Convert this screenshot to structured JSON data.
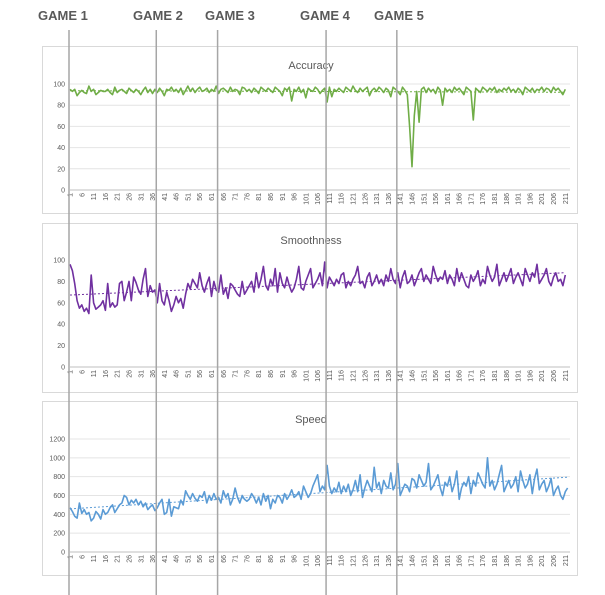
{
  "games": [
    {
      "label": "GAME 1",
      "x": 1
    },
    {
      "label": "GAME 2",
      "x": 38
    },
    {
      "label": "GAME 3",
      "x": 64
    },
    {
      "label": "GAME 4",
      "x": 110
    },
    {
      "label": "GAME 5",
      "x": 140
    }
  ],
  "chart_data": [
    {
      "type": "line",
      "title": "Accuracy",
      "xlabel": "",
      "ylabel": "",
      "ylim": [
        0,
        100
      ],
      "yticks": [
        0,
        20,
        40,
        60,
        80,
        100
      ],
      "x_range": [
        1,
        213
      ],
      "xtick_start": 1,
      "xtick_step": 5,
      "xtick_end": 211,
      "trendline": true,
      "grid": true,
      "legend": "none",
      "color": "#70ad47",
      "series": [
        {
          "values": [
            95,
            93,
            95,
            89,
            92,
            94,
            92,
            91,
            98,
            93,
            95,
            90,
            92,
            94,
            93,
            93,
            95,
            92,
            90,
            97,
            92,
            94,
            95,
            93,
            91,
            96,
            94,
            92,
            95,
            93,
            90,
            94,
            97,
            92,
            95,
            91,
            95,
            92,
            96,
            93,
            89,
            95,
            94,
            97,
            93,
            95,
            92,
            96,
            90,
            94,
            98,
            93,
            96,
            92,
            95,
            97,
            93,
            94,
            96,
            92,
            95,
            93,
            98,
            91,
            95,
            96,
            94,
            92,
            97,
            93,
            95,
            94,
            90,
            97,
            96,
            93,
            95,
            92,
            96,
            94,
            91,
            97,
            95,
            93,
            96,
            94,
            92,
            97,
            95,
            93,
            89,
            96,
            94,
            97,
            84,
            95,
            93,
            97,
            92,
            95,
            87,
            96,
            94,
            93,
            97,
            95,
            91,
            94,
            96,
            83,
            97,
            88,
            95,
            93,
            96,
            94,
            92,
            97,
            95,
            93,
            98,
            94,
            92,
            96,
            93,
            95,
            97,
            89,
            94,
            96,
            93,
            97,
            95,
            92,
            96,
            94,
            88,
            97,
            95,
            93,
            90,
            97,
            94,
            90,
            60,
            22,
            70,
            93,
            64,
            95,
            97,
            92,
            96,
            93,
            95,
            91,
            97,
            94,
            80,
            96,
            93,
            95,
            92,
            97,
            94,
            96,
            93,
            90,
            97,
            95,
            93,
            66,
            96,
            94,
            92,
            97,
            95,
            93,
            96,
            94,
            97,
            92,
            95,
            93,
            96,
            94,
            97,
            93,
            95,
            92,
            96,
            94,
            90,
            97,
            95,
            93,
            96,
            92,
            95,
            94,
            97,
            93,
            96,
            95,
            92,
            97,
            94,
            96,
            93,
            90,
            95
          ]
        }
      ]
    },
    {
      "type": "line",
      "title": "Smoothness",
      "xlabel": "",
      "ylabel": "",
      "ylim": [
        0,
        100
      ],
      "yticks": [
        0,
        20,
        40,
        60,
        80,
        100
      ],
      "x_range": [
        1,
        213
      ],
      "xtick_start": 1,
      "xtick_step": 5,
      "xtick_end": 211,
      "trendline": true,
      "grid": false,
      "legend": "none",
      "color": "#7030a0",
      "series": [
        {
          "values": [
            96,
            90,
            78,
            62,
            55,
            58,
            52,
            55,
            50,
            86,
            60,
            54,
            56,
            58,
            62,
            53,
            78,
            56,
            60,
            56,
            58,
            78,
            80,
            62,
            70,
            80,
            62,
            84,
            79,
            72,
            68,
            82,
            92,
            66,
            76,
            70,
            72,
            60,
            78,
            62,
            58,
            70,
            62,
            52,
            58,
            66,
            60,
            64,
            55,
            68,
            78,
            73,
            82,
            78,
            74,
            88,
            76,
            70,
            78,
            84,
            66,
            80,
            72,
            70,
            86,
            68,
            74,
            64,
            78,
            76,
            72,
            68,
            66,
            80,
            68,
            72,
            76,
            80,
            70,
            88,
            74,
            82,
            94,
            76,
            72,
            82,
            76,
            92,
            70,
            88,
            78,
            74,
            84,
            76,
            70,
            74,
            82,
            94,
            74,
            72,
            80,
            86,
            92,
            74,
            78,
            82,
            88,
            76,
            98,
            74,
            84,
            80,
            76,
            82,
            78,
            86,
            88,
            74,
            80,
            76,
            82,
            86,
            94,
            78,
            80,
            74,
            84,
            88,
            76,
            80,
            86,
            78,
            82,
            76,
            86,
            80,
            92,
            82,
            78,
            88,
            74,
            84,
            90,
            78,
            80,
            86,
            76,
            82,
            88,
            92,
            80,
            86,
            82,
            78,
            94,
            86,
            80,
            84,
            82,
            90,
            78,
            86,
            82,
            76,
            92,
            80,
            88,
            82,
            76,
            74,
            86,
            80,
            84,
            90,
            76,
            82,
            78,
            94,
            86,
            80,
            84,
            96,
            76,
            82,
            88,
            80,
            86,
            92,
            78,
            84,
            88,
            82,
            76,
            92,
            86,
            80,
            88,
            84,
            96,
            78,
            82,
            86,
            92,
            80,
            76,
            84,
            88,
            80,
            82,
            76,
            86
          ]
        }
      ]
    },
    {
      "type": "line",
      "title": "Speed",
      "xlabel": "",
      "ylabel": "",
      "ylim": [
        0,
        1200
      ],
      "yticks": [
        0,
        200,
        400,
        600,
        800,
        1000,
        1200
      ],
      "x_range": [
        1,
        213
      ],
      "xtick_start": 1,
      "xtick_step": 5,
      "xtick_end": 211,
      "trendline": true,
      "grid": true,
      "legend": "none",
      "color": "#5b9bd5",
      "series": [
        {
          "values": [
            470,
            430,
            380,
            360,
            520,
            410,
            450,
            400,
            420,
            330,
            360,
            430,
            400,
            350,
            450,
            400,
            420,
            470,
            500,
            420,
            460,
            500,
            520,
            600,
            580,
            500,
            550,
            520,
            560,
            500,
            540,
            480,
            520,
            450,
            480,
            500,
            440,
            470,
            520,
            560,
            400,
            420,
            560,
            380,
            480,
            470,
            460,
            550,
            500,
            650,
            600,
            560,
            620,
            570,
            540,
            600,
            580,
            640,
            520,
            600,
            550,
            620,
            560,
            580,
            520,
            650,
            580,
            620,
            500,
            560,
            680,
            580,
            520,
            600,
            560,
            540,
            560,
            620,
            580,
            520,
            580,
            500,
            620,
            540,
            600,
            460,
            560,
            520,
            600,
            580,
            520,
            620,
            560,
            600,
            660,
            580,
            600,
            640,
            560,
            700,
            640,
            580,
            620,
            700,
            760,
            820,
            640,
            700,
            660,
            920,
            700,
            620,
            680,
            640,
            740,
            620,
            700,
            640,
            720,
            600,
            660,
            760,
            640,
            820,
            580,
            680,
            760,
            700,
            640,
            900,
            680,
            740,
            620,
            760,
            700,
            680,
            840,
            660,
            720,
            940,
            600,
            660,
            720,
            700,
            640,
            780,
            760,
            680,
            820,
            760,
            700,
            740,
            940,
            660,
            700,
            760,
            820,
            680,
            600,
            740,
            700,
            800,
            640,
            720,
            860,
            560,
            680,
            740,
            700,
            800,
            620,
            760,
            700,
            840,
            780,
            720,
            680,
            1000,
            700,
            760,
            660,
            720,
            820,
            920,
            640,
            700,
            760,
            680,
            720,
            800,
            640,
            860,
            760,
            680,
            720,
            820,
            620,
            780,
            880,
            660,
            720,
            760,
            640,
            700,
            780,
            600,
            660,
            700,
            600,
            560,
            640,
            680
          ]
        }
      ]
    }
  ]
}
